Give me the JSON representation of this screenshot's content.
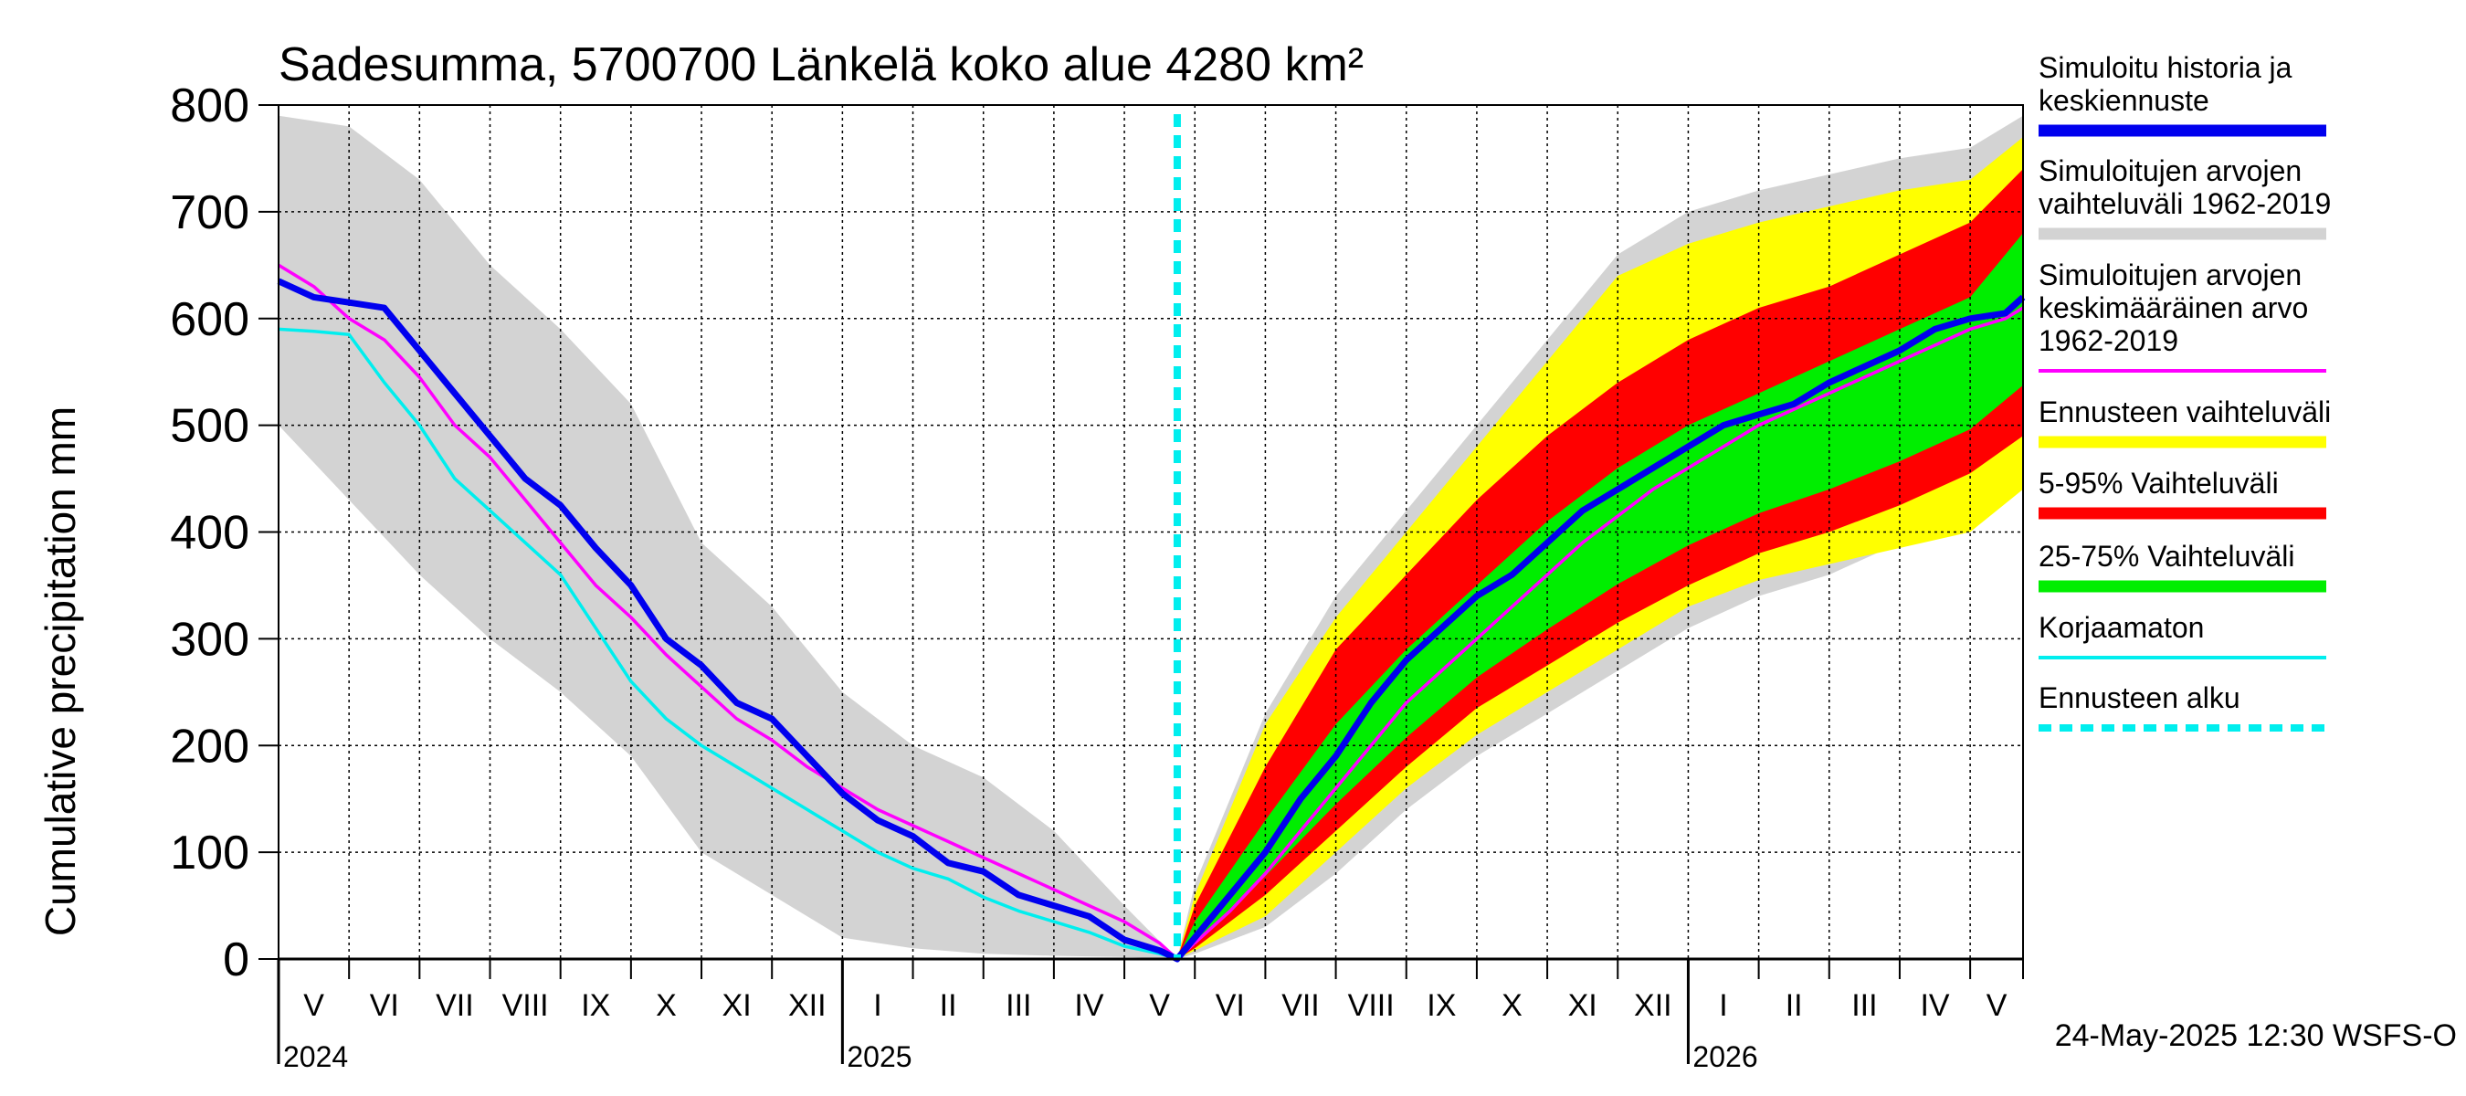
{
  "chart_data": {
    "type": "area",
    "title": "Sadesumma, 5700700 Länkelä koko alue 4280 km²",
    "ylabel": "Cumulative precipitation   mm",
    "ylim": [
      0,
      800
    ],
    "yticks": [
      0,
      100,
      200,
      300,
      400,
      500,
      600,
      700,
      800
    ],
    "months": [
      "V",
      "VI",
      "VII",
      "VIII",
      "IX",
      "X",
      "XI",
      "XII",
      "I",
      "II",
      "III",
      "IV",
      "V",
      "VI",
      "VII",
      "VIII",
      "IX",
      "X",
      "XI",
      "XII",
      "I",
      "II",
      "III",
      "IV",
      "V"
    ],
    "years": [
      {
        "label": "2024",
        "month_index": 0
      },
      {
        "label": "2025",
        "month_index": 8
      },
      {
        "label": "2026",
        "month_index": 20
      }
    ],
    "forecast_start_index": 12.75,
    "x_max": 24.75,
    "series": [
      {
        "name": "Simuloitu historia ja keskiennuste",
        "color": "#0000ee",
        "x": [
          0,
          0.5,
          1,
          1.5,
          2,
          2.5,
          3,
          3.5,
          4,
          4.5,
          5,
          5.5,
          6,
          6.5,
          7,
          7.5,
          8,
          8.5,
          9,
          9.5,
          10,
          10.5,
          11,
          11.5,
          12,
          12.5,
          12.75,
          13,
          13.5,
          14,
          14.5,
          15,
          15.5,
          16,
          16.5,
          17,
          17.5,
          18,
          18.5,
          19,
          19.5,
          20,
          20.5,
          21,
          21.5,
          22,
          22.5,
          23,
          23.5,
          24,
          24.5,
          24.75
        ],
        "y": [
          635,
          620,
          615,
          610,
          570,
          530,
          490,
          450,
          425,
          385,
          350,
          300,
          275,
          240,
          225,
          190,
          155,
          130,
          115,
          90,
          82,
          60,
          50,
          40,
          18,
          8,
          0,
          20,
          60,
          100,
          150,
          190,
          240,
          280,
          310,
          340,
          360,
          390,
          420,
          440,
          460,
          480,
          500,
          510,
          520,
          540,
          555,
          570,
          590,
          600,
          605,
          620
        ]
      },
      {
        "name": "Simuloitujen arvojen keskimääräinen arvo 1962-2019",
        "color": "#ff00ff",
        "x": [
          0,
          0.5,
          1,
          1.5,
          2,
          2.5,
          3,
          3.5,
          4,
          4.5,
          5,
          5.5,
          6,
          6.5,
          7,
          7.5,
          8,
          8.5,
          9,
          9.5,
          10,
          10.5,
          11,
          11.5,
          12,
          12.5,
          12.75,
          13,
          13.5,
          14,
          14.5,
          15,
          15.5,
          16,
          16.5,
          17,
          17.5,
          18,
          18.5,
          19,
          19.5,
          20,
          20.5,
          21,
          21.5,
          22,
          22.5,
          23,
          23.5,
          24,
          24.5,
          24.75
        ],
        "y": [
          650,
          630,
          600,
          580,
          545,
          500,
          470,
          430,
          390,
          350,
          320,
          285,
          255,
          225,
          205,
          180,
          160,
          140,
          125,
          110,
          95,
          80,
          65,
          50,
          35,
          15,
          0,
          15,
          45,
          80,
          120,
          160,
          200,
          240,
          270,
          300,
          330,
          360,
          390,
          415,
          440,
          460,
          480,
          500,
          515,
          530,
          545,
          560,
          575,
          590,
          600,
          610
        ]
      },
      {
        "name": "Korjaamaton",
        "color": "#00eeee",
        "x": [
          0,
          0.5,
          1,
          1.5,
          2,
          2.5,
          3,
          3.5,
          4,
          4.5,
          5,
          5.5,
          6,
          6.5,
          7,
          7.5,
          8,
          8.5,
          9,
          9.5,
          10,
          10.5,
          11,
          11.5,
          12,
          12.5,
          12.75
        ],
        "y": [
          590,
          588,
          585,
          540,
          500,
          450,
          420,
          390,
          360,
          310,
          260,
          225,
          200,
          180,
          160,
          140,
          120,
          100,
          85,
          75,
          58,
          45,
          35,
          25,
          12,
          5,
          0
        ]
      }
    ],
    "bands": [
      {
        "name": "Simuloitujen arvojen vaihteluväli 1962-2019",
        "color": "#d3d3d3",
        "x": [
          0,
          1,
          2,
          3,
          4,
          5,
          6,
          7,
          8,
          9,
          10,
          11,
          12,
          12.75,
          13,
          14,
          15,
          16,
          17,
          18,
          19,
          20,
          21,
          22,
          23,
          24,
          24.75
        ],
        "upper": [
          790,
          780,
          730,
          650,
          590,
          520,
          390,
          330,
          250,
          200,
          170,
          120,
          50,
          0,
          70,
          230,
          340,
          420,
          500,
          580,
          660,
          700,
          720,
          735,
          750,
          760,
          790
        ],
        "lower": [
          500,
          430,
          360,
          300,
          250,
          190,
          100,
          60,
          20,
          10,
          5,
          3,
          2,
          0,
          5,
          30,
          80,
          140,
          190,
          230,
          270,
          310,
          340,
          360,
          390,
          410,
          440
        ]
      },
      {
        "name": "Ennusteen vaihteluväli",
        "color": "#ffff00",
        "x": [
          12.75,
          13,
          14,
          15,
          16,
          17,
          18,
          19,
          20,
          21,
          22,
          23,
          24,
          24.75
        ],
        "upper": [
          0,
          60,
          220,
          320,
          400,
          480,
          560,
          640,
          670,
          690,
          705,
          720,
          730,
          770
        ],
        "lower": [
          0,
          8,
          40,
          100,
          160,
          210,
          250,
          290,
          330,
          355,
          370,
          385,
          400,
          440
        ]
      },
      {
        "name": "5-95% Vaihteluväli",
        "color": "#ff0000",
        "x": [
          12.75,
          13,
          14,
          15,
          16,
          17,
          18,
          19,
          20,
          21,
          22,
          23,
          24,
          24.75
        ],
        "upper": [
          0,
          50,
          180,
          290,
          360,
          430,
          490,
          540,
          580,
          610,
          630,
          660,
          690,
          740
        ],
        "lower": [
          0,
          10,
          60,
          120,
          180,
          235,
          275,
          315,
          350,
          380,
          400,
          425,
          455,
          490
        ]
      },
      {
        "name": "25-75% Vaihteluväli",
        "color": "#00ee00",
        "x": [
          12.75,
          13,
          14,
          15,
          16,
          17,
          18,
          19,
          20,
          21,
          22,
          23,
          24,
          24.75
        ],
        "upper": [
          0,
          35,
          130,
          220,
          290,
          350,
          410,
          460,
          500,
          530,
          560,
          590,
          620,
          680
        ]
      }
    ]
  },
  "legend": [
    {
      "lines": [
        "Simuloitu historia ja",
        "keskiennuste"
      ],
      "color": "#0000ee",
      "style": "solid"
    },
    {
      "lines": [
        "Simuloitujen arvojen",
        "vaihteluväli 1962-2019"
      ],
      "color": "#d3d3d3",
      "style": "solid"
    },
    {
      "lines": [
        "Simuloitujen arvojen",
        "keskimääräinen arvo",
        "   1962-2019"
      ],
      "color": "#ff00ff",
      "style": "thin"
    },
    {
      "lines": [
        "Ennusteen vaihteluväli"
      ],
      "color": "#ffff00",
      "style": "solid"
    },
    {
      "lines": [
        "5-95% Vaihteluväli"
      ],
      "color": "#ff0000",
      "style": "solid"
    },
    {
      "lines": [
        "25-75% Vaihteluväli"
      ],
      "color": "#00ee00",
      "style": "solid"
    },
    {
      "lines": [
        "Korjaamaton"
      ],
      "color": "#00eeee",
      "style": "thin"
    },
    {
      "lines": [
        "Ennusteen alku"
      ],
      "color": "#00eeee",
      "style": "dashed"
    }
  ],
  "footer": "24-May-2025 12:30 WSFS-O"
}
